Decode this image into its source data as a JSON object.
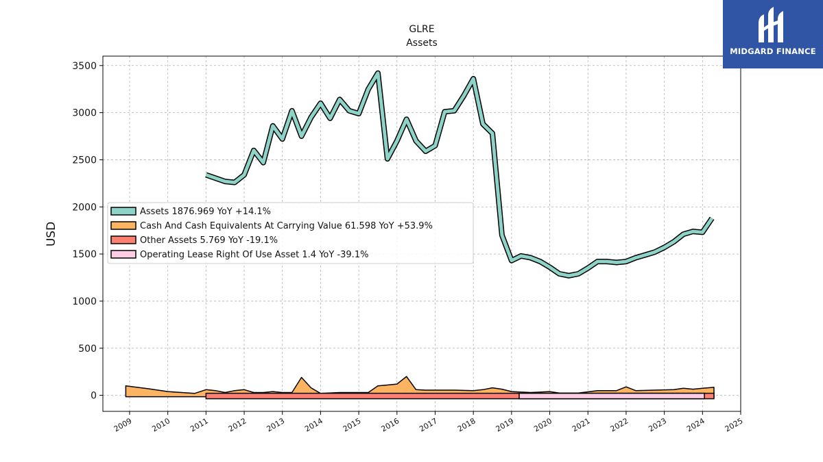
{
  "logo": {
    "text": "MIDGARD FINANCE",
    "bg_color": "#2f55a4"
  },
  "chart_data": {
    "type": "area",
    "title": "GLRE",
    "subtitle": "Assets",
    "ylabel": "USD",
    "xlabel": "",
    "xlim": [
      2008.3,
      2025.0
    ],
    "ylim": [
      -170,
      3600
    ],
    "x_ticks": [
      "2009",
      "2010",
      "2011",
      "2012",
      "2013",
      "2014",
      "2015",
      "2016",
      "2017",
      "2018",
      "2019",
      "2020",
      "2021",
      "2022",
      "2023",
      "2024",
      "2025"
    ],
    "y_ticks": [
      0,
      500,
      1000,
      1500,
      2000,
      2500,
      3000,
      3500
    ],
    "grid": true,
    "legend_position": "center-left",
    "series": [
      {
        "name": "Assets",
        "legend": "Assets  1876.969 YoY +14.1%",
        "color": "#8dd3c7",
        "style": "line",
        "x": [
          2011.0,
          2011.5,
          2011.75,
          2012.0,
          2012.25,
          2012.5,
          2012.75,
          2013.0,
          2013.25,
          2013.5,
          2013.75,
          2014.0,
          2014.25,
          2014.5,
          2014.75,
          2015.0,
          2015.25,
          2015.5,
          2015.75,
          2016.0,
          2016.25,
          2016.5,
          2016.75,
          2017.0,
          2017.25,
          2017.5,
          2017.75,
          2018.0,
          2018.25,
          2018.5,
          2018.75,
          2019.0,
          2019.25,
          2019.5,
          2019.75,
          2020.0,
          2020.25,
          2020.5,
          2020.75,
          2021.0,
          2021.25,
          2021.5,
          2021.75,
          2022.0,
          2022.25,
          2022.5,
          2022.75,
          2023.0,
          2023.25,
          2023.5,
          2023.75,
          2024.0,
          2024.25
        ],
        "values": [
          2340,
          2270,
          2260,
          2340,
          2600,
          2470,
          2860,
          2720,
          3020,
          2750,
          2950,
          3100,
          2940,
          3140,
          3020,
          2990,
          3250,
          3420,
          2510,
          2700,
          2930,
          2700,
          2590,
          2650,
          3010,
          3020,
          3180,
          3360,
          2880,
          2780,
          1700,
          1430,
          1480,
          1460,
          1420,
          1360,
          1290,
          1270,
          1290,
          1350,
          1420,
          1420,
          1410,
          1420,
          1460,
          1490,
          1520,
          1570,
          1630,
          1710,
          1740,
          1730,
          1880
        ]
      },
      {
        "name": "Cash And Cash Equivalents At Carrying Value",
        "legend": "Cash And Cash Equivalents At Carrying Value  61.598 YoY +53.9%",
        "color": "#fdb462",
        "style": "area",
        "x": [
          2008.9,
          2009.5,
          2010.0,
          2010.7,
          2011.0,
          2011.25,
          2011.5,
          2011.75,
          2012.0,
          2012.25,
          2012.5,
          2012.75,
          2013.0,
          2013.25,
          2013.5,
          2013.75,
          2014.0,
          2014.5,
          2015.0,
          2015.25,
          2015.5,
          2015.75,
          2016.0,
          2016.25,
          2016.5,
          2016.75,
          2017.0,
          2017.5,
          2018.0,
          2018.25,
          2018.5,
          2018.75,
          2019.0,
          2019.5,
          2020.0,
          2020.25,
          2020.75,
          2021.25,
          2021.75,
          2022.0,
          2022.25,
          2022.75,
          2023.25,
          2023.5,
          2023.75,
          2024.0,
          2024.3
        ],
        "values": [
          100,
          70,
          40,
          20,
          60,
          50,
          30,
          50,
          60,
          30,
          30,
          40,
          30,
          30,
          190,
          80,
          20,
          30,
          30,
          30,
          100,
          110,
          120,
          200,
          60,
          55,
          55,
          55,
          50,
          60,
          80,
          65,
          40,
          30,
          40,
          25,
          25,
          50,
          50,
          90,
          50,
          55,
          60,
          75,
          65,
          75,
          85
        ]
      },
      {
        "name": "Other Assets",
        "legend": "Other Assets  5.769 YoY -19.1%",
        "color": "#fb8072",
        "style": "bar",
        "x": [
          2011.0,
          2024.3
        ],
        "values": [
          6,
          6
        ]
      },
      {
        "name": "Operating Lease Right Of Use Asset",
        "legend": "Operating Lease Right Of Use Asset  1.4 YoY -39.1%",
        "color": "#fccde5",
        "style": "bar",
        "x": [
          2019.2,
          2024.05
        ],
        "values": [
          1.4,
          1.4
        ]
      }
    ]
  }
}
